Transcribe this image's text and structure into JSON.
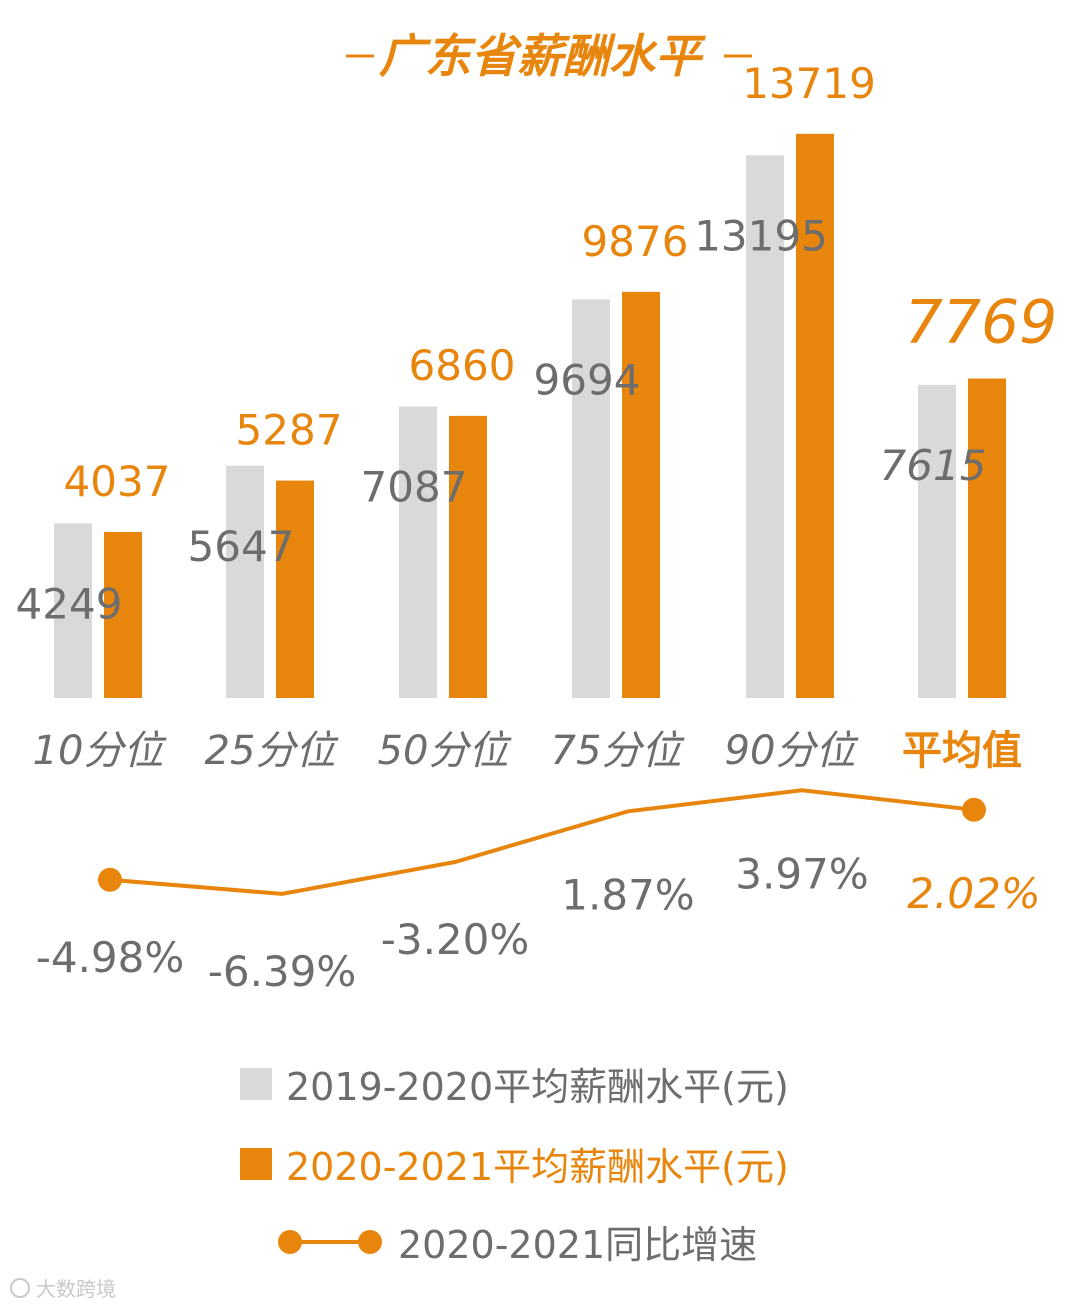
{
  "title": "广东省薪酬水平",
  "colors": {
    "series_2019": "#D9D9D9",
    "series_2020": "#E8850C",
    "line": "#E8850C",
    "text_gray": "#6d6d6d"
  },
  "chart_data": {
    "type": "bar",
    "title": "广东省薪酬水平",
    "categories": [
      "10分位",
      "25分位",
      "50分位",
      "75分位",
      "90分位",
      "平均值"
    ],
    "highlight_category": "平均值",
    "ylim": [
      0,
      16000
    ],
    "series": [
      {
        "name": "2019-2020平均薪酬水平(元)",
        "values": [
          4249,
          5647,
          7087,
          9694,
          13195,
          7615
        ]
      },
      {
        "name": "2020-2021平均薪酬水平(元)",
        "values": [
          4037,
          5287,
          6860,
          9876,
          13719,
          7769
        ]
      }
    ],
    "growth": {
      "name": "2020-2021同比增速",
      "type": "line",
      "values": [
        -4.98,
        -6.39,
        -3.2,
        1.87,
        3.97,
        2.02
      ],
      "labels": [
        "-4.98%",
        "-6.39%",
        "-3.20%",
        "1.87%",
        "3.97%",
        "2.02%"
      ],
      "ylim": [
        -8,
        5
      ]
    },
    "legend_position": "bottom",
    "grid": false
  },
  "legend": {
    "item1": "2019-2020平均薪酬水平(元)",
    "item2": "2020-2021平均薪酬水平(元)",
    "item3": "2020-2021同比增速"
  },
  "watermark": "大数跨境"
}
